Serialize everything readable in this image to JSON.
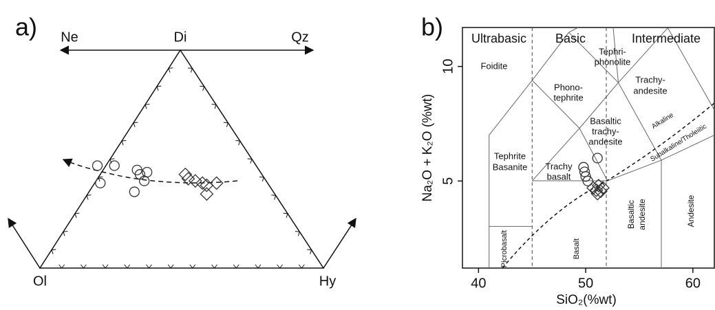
{
  "chart_data": [
    {
      "type": "ternary",
      "title": "a)",
      "apices": {
        "left": "Ol",
        "top": "Di",
        "right": "Hy"
      },
      "arrow_labels": {
        "left": "Ne",
        "right": "Qz"
      },
      "series": [
        {
          "marker": "circle",
          "color": "#333333",
          "di": [
            47,
            47,
            39,
            45,
            43,
            44,
            40,
            35
          ],
          "hy": [
            -3,
            3,
            2,
            12,
            14,
            16,
            17,
            16
          ]
        },
        {
          "marker": "diamond",
          "color": "#333333",
          "di": [
            43,
            41,
            40,
            39,
            38,
            39,
            34
          ],
          "hy": [
            30,
            32,
            35,
            38,
            40,
            43,
            42
          ]
        }
      ]
    },
    {
      "type": "scatter",
      "title": "b)",
      "x_label": "SiO₂(%wt)",
      "y_label": "Na₂O + K₂O (%wt)",
      "xlim": [
        38.5,
        62
      ],
      "ylim": [
        1.2,
        11.7
      ],
      "xticks": [
        40,
        50,
        60
      ],
      "yticks": [
        5,
        10
      ],
      "series": [
        {
          "marker": "circle",
          "color": "#333333",
          "x": [
            49.8,
            49.9,
            50.0,
            50.2,
            51.1
          ],
          "values": [
            5.6,
            5.4,
            5.2,
            5.0,
            6.0
          ]
        },
        {
          "marker": "diamond",
          "color": "#333333",
          "x": [
            50.7,
            51.0,
            51.2,
            51.4,
            51.6,
            51.1
          ],
          "values": [
            4.7,
            4.6,
            4.8,
            4.55,
            4.7,
            4.45
          ]
        }
      ],
      "annotations": [
        "Ultrabasic",
        "Basic",
        "Intermediate",
        "Foidite",
        "Tephri-",
        "phonolite",
        "Phono-",
        "tephrite",
        "Trachy-",
        "andesite",
        "Basaltic",
        "trachy-",
        "andesite",
        "Tephrite",
        "Basanite",
        "Trachy",
        "basalt",
        "Alkaline",
        "Subalkaline/Tholeiitic",
        "Picrobasalt",
        "Basalt",
        "Basaltic",
        "andesite",
        "Andesite"
      ]
    }
  ]
}
